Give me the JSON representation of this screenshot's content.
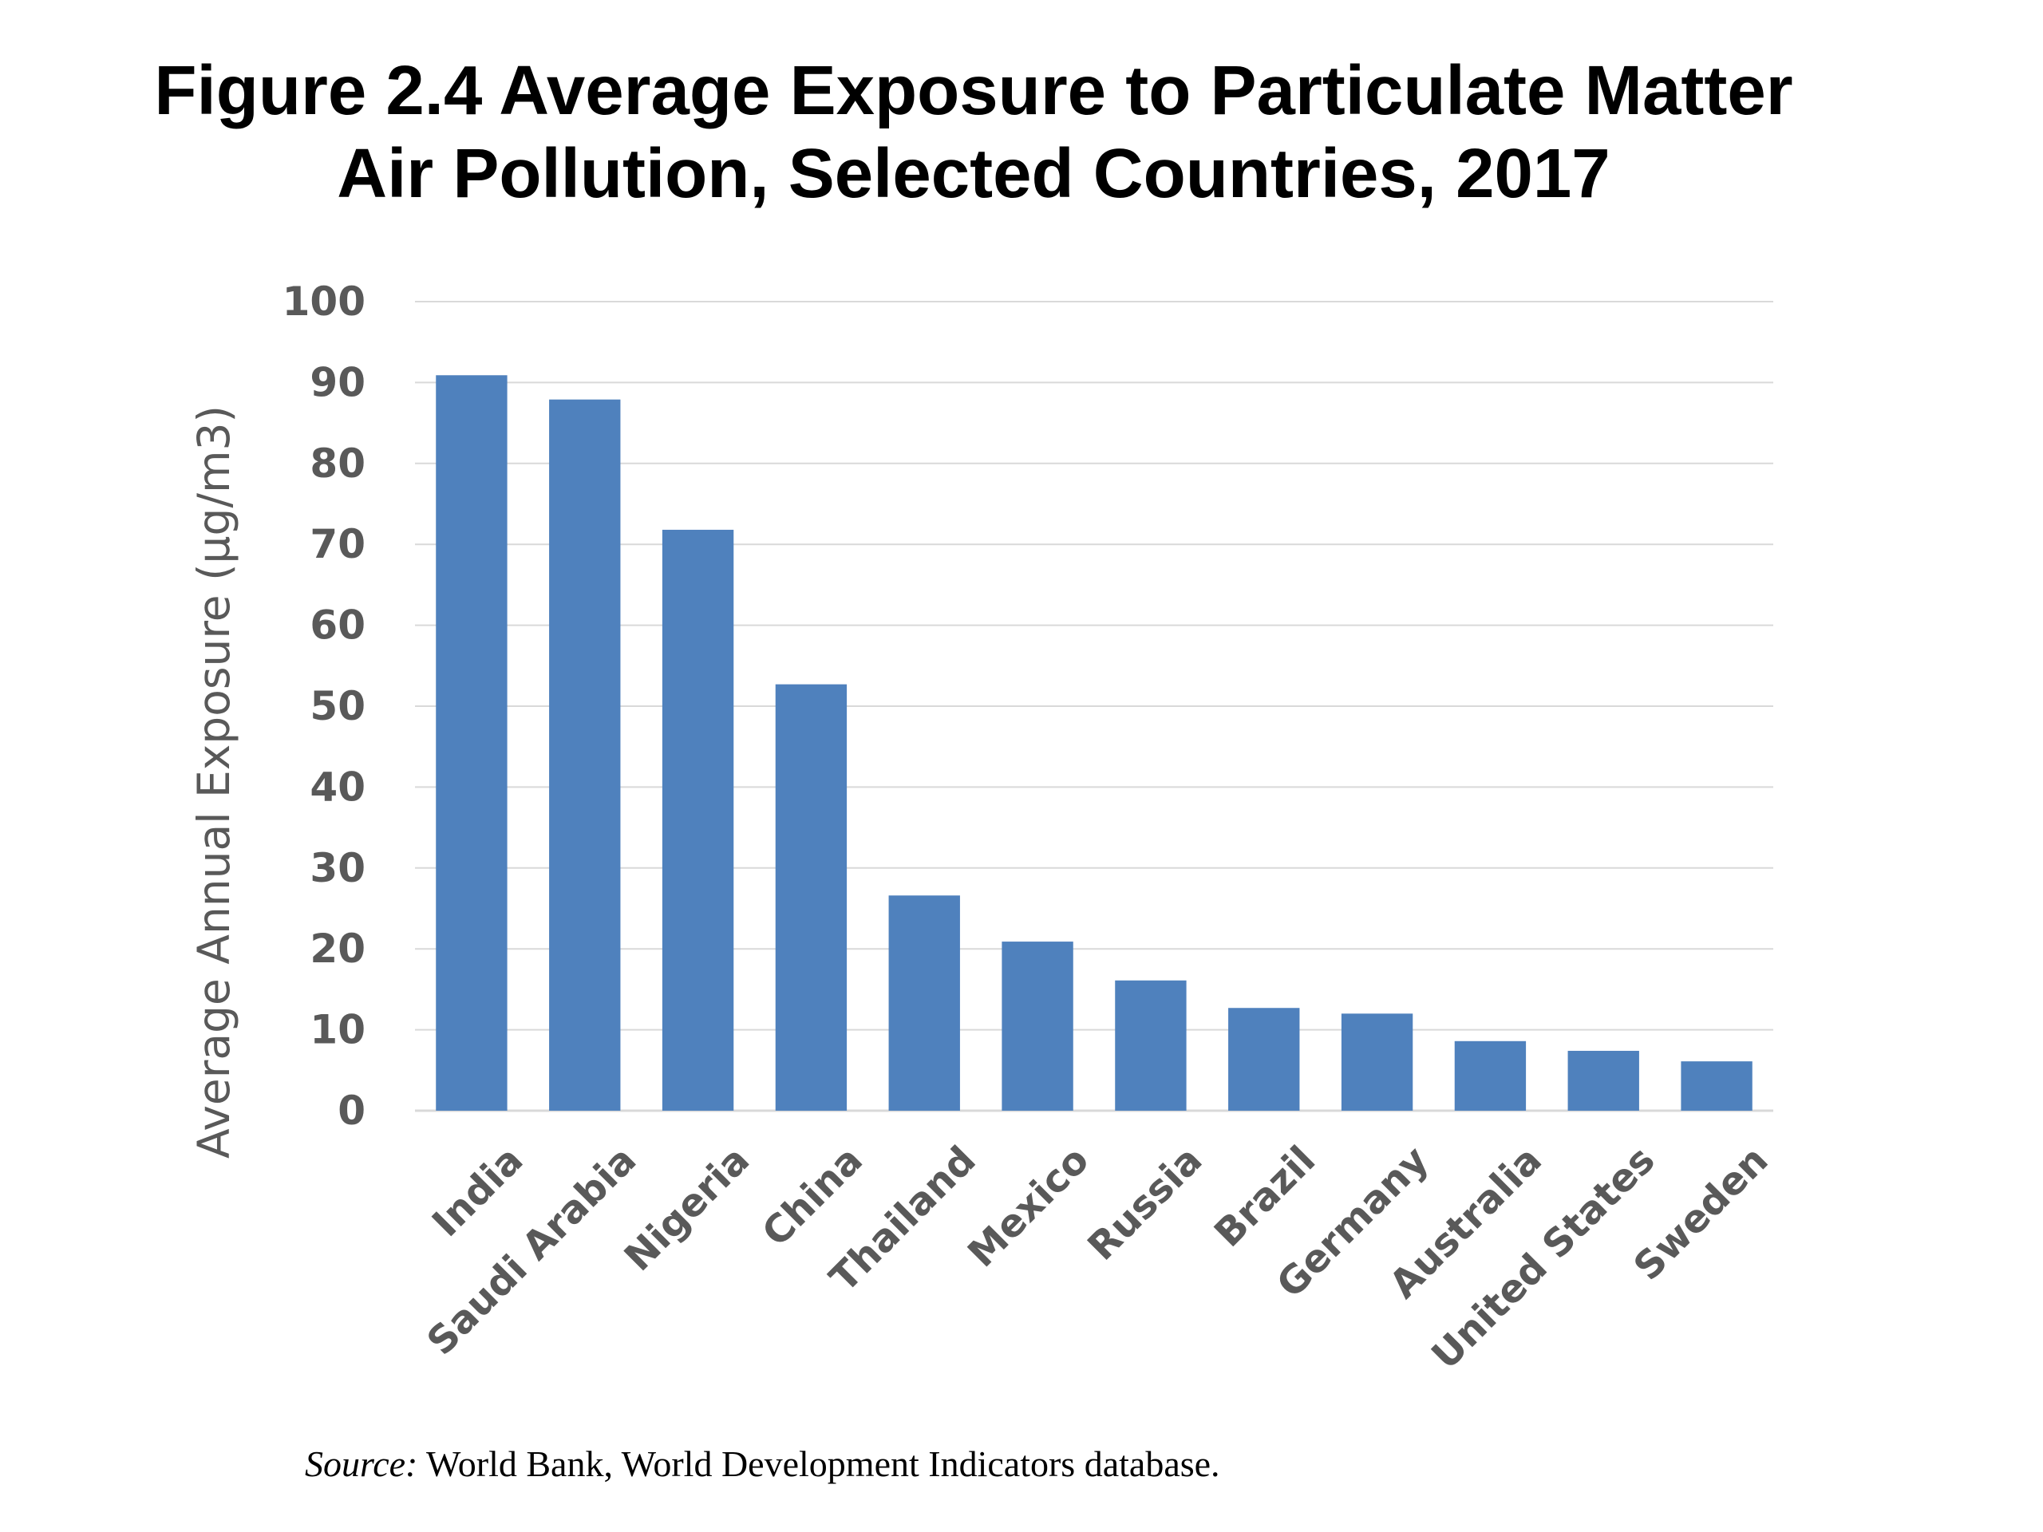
{
  "title_lines": [
    "Figure 2.4 Average Exposure to Particulate Matter",
    "Air Pollution, Selected Countries, 2017"
  ],
  "source": {
    "label": "Source:",
    "text": " World Bank, World Development Indicators database."
  },
  "colors": {
    "bar": "#4F81BD",
    "grid": "#D9D9D9",
    "axis_text": "#595959"
  },
  "chart_data": {
    "type": "bar",
    "title": "Figure 2.4 Average Exposure to Particulate Matter Air Pollution, Selected Countries, 2017",
    "ylabel": "Average Annual Exposure (µg/m3)",
    "xlabel": "",
    "ylim": [
      0,
      100
    ],
    "yticks": [
      0,
      10,
      20,
      30,
      40,
      50,
      60,
      70,
      80,
      90,
      100
    ],
    "grid": true,
    "categories": [
      "India",
      "Saudi Arabia",
      "Nigeria",
      "China",
      "Thailand",
      "Mexico",
      "Russia",
      "Brazil",
      "Germany",
      "Australia",
      "United States",
      "Sweden"
    ],
    "values": [
      90.9,
      87.9,
      71.8,
      52.7,
      26.6,
      20.9,
      16.1,
      12.7,
      12.0,
      8.6,
      7.4,
      6.1
    ]
  }
}
